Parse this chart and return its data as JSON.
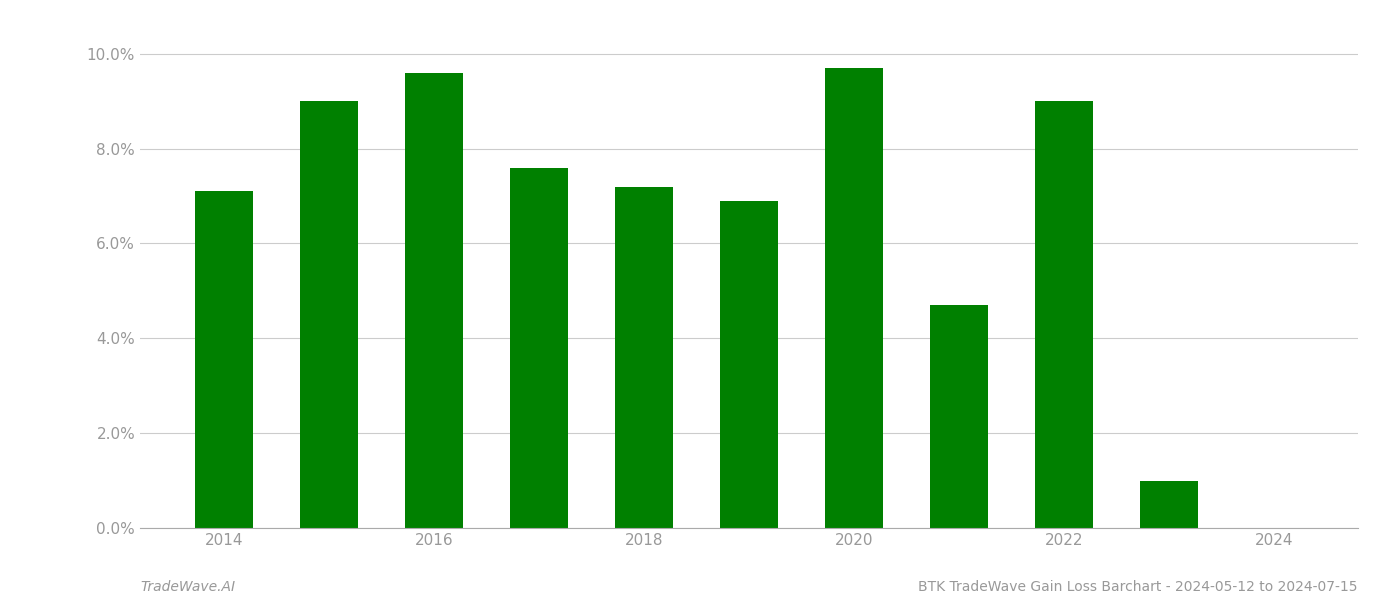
{
  "years": [
    2014,
    2015,
    2016,
    2017,
    2018,
    2019,
    2020,
    2021,
    2022,
    2023
  ],
  "values": [
    0.071,
    0.09,
    0.096,
    0.076,
    0.072,
    0.069,
    0.097,
    0.047,
    0.09,
    0.01
  ],
  "bar_color": "#008000",
  "ylim": [
    0.0,
    0.105
  ],
  "yticks": [
    0.0,
    0.02,
    0.04,
    0.06,
    0.08,
    0.1
  ],
  "ytick_labels": [
    "0.0%",
    "2.0%",
    "4.0%",
    "6.0%",
    "8.0%",
    "10.0%"
  ],
  "xtick_years": [
    2014,
    2016,
    2018,
    2020,
    2022,
    2024
  ],
  "footer_left": "TradeWave.AI",
  "footer_right": "BTK TradeWave Gain Loss Barchart - 2024-05-12 to 2024-07-15",
  "background_color": "#ffffff",
  "grid_color": "#cccccc",
  "bar_width": 0.55
}
